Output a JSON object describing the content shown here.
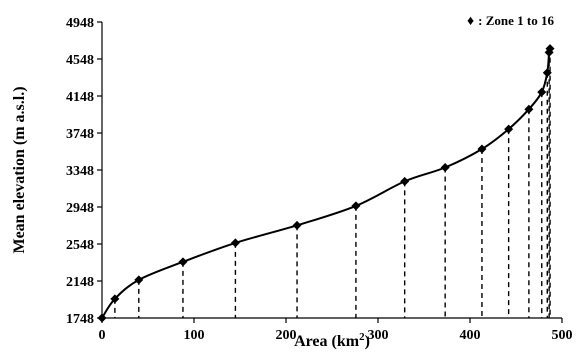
{
  "chart_data": {
    "type": "line",
    "title": "",
    "xlabel_main": "Area (km",
    "xlabel_sup": "2",
    "xlabel_end": ")",
    "ylabel": "Mean elevation (m a.s.l.)",
    "xlim": [
      0,
      500
    ],
    "ylim": [
      1748,
      4948
    ],
    "x_ticks": [
      0,
      100,
      200,
      300,
      400,
      500
    ],
    "y_ticks": [
      1748,
      2148,
      2548,
      2948,
      3348,
      3748,
      4148,
      4548,
      4948
    ],
    "legend": {
      "symbol": "♦",
      "label": ": Zone 1 to 16",
      "position": "top-right"
    },
    "grid": false,
    "series": [
      {
        "marker": "diamond",
        "x": [
          0,
          14,
          40,
          88,
          145,
          212,
          276,
          329,
          373,
          413,
          442,
          464,
          478,
          484,
          486,
          487
        ],
        "y": [
          1748,
          1955,
          2160,
          2355,
          2560,
          2750,
          2960,
          3225,
          3375,
          3575,
          3790,
          4005,
          4190,
          4400,
          4620,
          4660
        ]
      }
    ]
  }
}
